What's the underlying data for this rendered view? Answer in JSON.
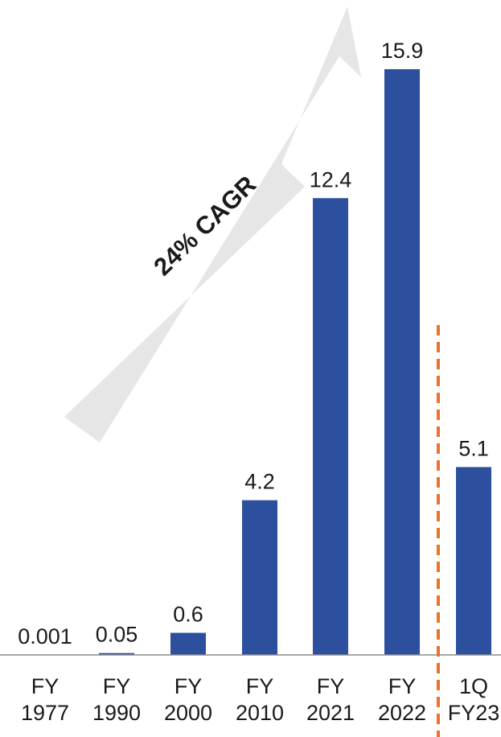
{
  "chart_data": {
    "type": "bar",
    "categories": [
      [
        "FY",
        "1977"
      ],
      [
        "FY",
        "1990"
      ],
      [
        "FY",
        "2000"
      ],
      [
        "FY",
        "2010"
      ],
      [
        "FY",
        "2021"
      ],
      [
        "FY",
        "2022"
      ],
      [
        "1Q",
        "FY23"
      ]
    ],
    "values": [
      0.001,
      0.05,
      0.6,
      4.2,
      12.4,
      15.9,
      5.1
    ],
    "value_labels": [
      "0.001",
      "0.05",
      "0.6",
      "4.2",
      "12.4",
      "15.9",
      "5.1"
    ],
    "title": "",
    "xlabel": "",
    "ylabel": "",
    "ylim": [
      0,
      15.9
    ],
    "grid": false,
    "annotation": "24% CAGR",
    "colors": {
      "bar": "#2c4f9e",
      "arrow": "#e6e6e6",
      "divider": "#e8752b",
      "axis": "#8c8c8c",
      "text": "#1a1a1a"
    }
  }
}
